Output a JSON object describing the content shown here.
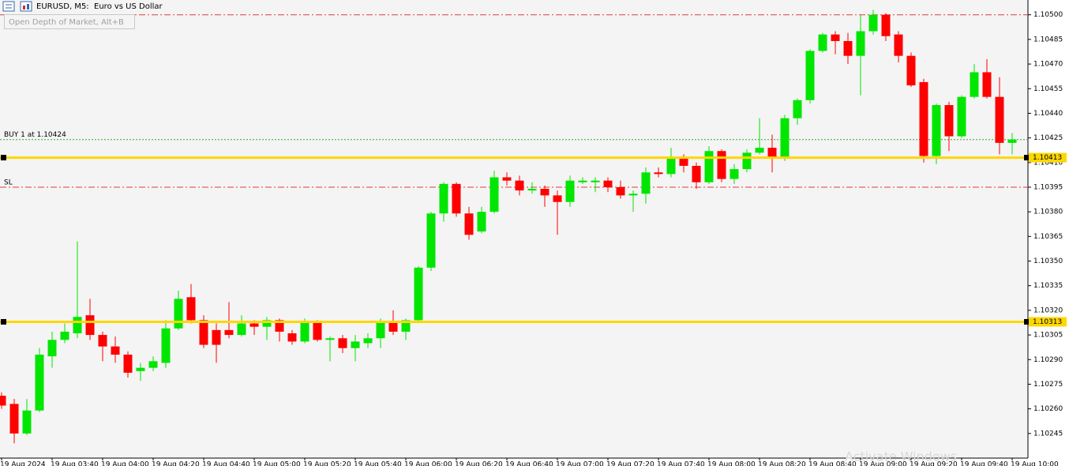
{
  "chart_data": {
    "type": "candlestick",
    "title": "EURUSD, M5:  Euro vs US Dollar",
    "tooltip": "Open Depth of Market, Alt+B",
    "watermark": "Activate Windows",
    "up_color": "#00e600",
    "down_color": "#ff0000",
    "categories": [
      "19 Aug 2024",
      null,
      null,
      null,
      "19 Aug 03:40",
      null,
      null,
      null,
      "19 Aug 04:00",
      null,
      null,
      null,
      "19 Aug 04:20",
      null,
      null,
      null,
      "19 Aug 04:40",
      null,
      null,
      null,
      "19 Aug 05:00",
      null,
      null,
      null,
      "19 Aug 05:20",
      null,
      null,
      null,
      "19 Aug 05:40",
      null,
      null,
      null,
      "19 Aug 06:00",
      null,
      null,
      null,
      "19 Aug 06:20",
      null,
      null,
      null,
      "19 Aug 06:40",
      null,
      null,
      null,
      "19 Aug 07:00",
      null,
      null,
      null,
      "19 Aug 07:20",
      null,
      null,
      null,
      "19 Aug 07:40",
      null,
      null,
      null,
      "19 Aug 08:00",
      null,
      null,
      null,
      "19 Aug 08:20",
      null,
      null,
      null,
      "19 Aug 08:40",
      null,
      null,
      null,
      "19 Aug 09:00",
      null,
      null,
      null,
      "19 Aug 09:20",
      null,
      null,
      null,
      "19 Aug 09:40",
      null,
      null,
      null,
      "19 Aug 10:00"
    ],
    "open": [
      1.10268,
      1.10263,
      1.10245,
      1.10259,
      1.10292,
      1.10302,
      1.10306,
      1.10317,
      1.10305,
      1.10298,
      1.10293,
      1.10283,
      1.10285,
      1.10288,
      1.10309,
      1.10328,
      1.10314,
      1.10308,
      1.10308,
      1.10305,
      1.10312,
      1.1031,
      1.10314,
      1.10306,
      1.10301,
      1.10313,
      1.10302,
      1.10303,
      1.10297,
      1.103,
      1.10303,
      1.10313,
      1.10307,
      1.10314,
      1.10346,
      1.10379,
      1.10397,
      1.10379,
      1.10368,
      1.1038,
      1.10401,
      1.10399,
      1.10393,
      1.10394,
      1.1039,
      1.10386,
      1.10398,
      1.10398,
      1.10399,
      1.10395,
      1.1039,
      1.10391,
      1.10404,
      1.10403,
      1.10413,
      1.10408,
      1.10398,
      1.10417,
      1.104,
      1.10406,
      1.10416,
      1.10419,
      1.10413,
      1.10437,
      1.10448,
      1.10478,
      1.10488,
      1.10484,
      1.10475,
      1.1049,
      1.105,
      1.10488,
      1.10475,
      1.10459,
      1.10414,
      1.10445,
      1.10426,
      1.1045,
      1.10465,
      1.1045,
      1.10422
    ],
    "high": [
      1.1027,
      1.10266,
      1.10266,
      1.10297,
      1.10307,
      1.10312,
      1.10362,
      1.10327,
      1.10307,
      1.10304,
      1.10295,
      1.10288,
      1.10292,
      1.10314,
      1.10332,
      1.10336,
      1.10317,
      1.10312,
      1.10325,
      1.10317,
      1.10314,
      1.10316,
      1.10315,
      1.10308,
      1.10315,
      1.10314,
      1.10304,
      1.10305,
      1.10305,
      1.10306,
      1.10315,
      1.1032,
      1.10315,
      1.10347,
      1.1038,
      1.10398,
      1.10398,
      1.10383,
      1.10383,
      1.10405,
      1.10404,
      1.10402,
      1.10398,
      1.10396,
      1.10393,
      1.10402,
      1.10401,
      1.10401,
      1.10401,
      1.10399,
      1.10393,
      1.10407,
      1.10407,
      1.10419,
      1.10415,
      1.1041,
      1.1042,
      1.10418,
      1.10409,
      1.10418,
      1.10437,
      1.10427,
      1.10439,
      1.10449,
      1.10479,
      1.10489,
      1.1049,
      1.10489,
      1.105,
      1.10503,
      1.10501,
      1.1049,
      1.10477,
      1.10461,
      1.10446,
      1.10447,
      1.10451,
      1.1047,
      1.10473,
      1.10462,
      1.10428
    ],
    "low": [
      1.1026,
      1.10239,
      1.10244,
      1.10258,
      1.10285,
      1.103,
      1.10303,
      1.10302,
      1.10289,
      1.10288,
      1.10279,
      1.10277,
      1.10283,
      1.10285,
      1.10308,
      1.10312,
      1.10297,
      1.10288,
      1.10303,
      1.10304,
      1.10305,
      1.10302,
      1.10301,
      1.10299,
      1.103,
      1.10301,
      1.10289,
      1.10294,
      1.10289,
      1.10297,
      1.10297,
      1.10305,
      1.10302,
      1.10313,
      1.10344,
      1.10374,
      1.10377,
      1.10363,
      1.10367,
      1.10379,
      1.10396,
      1.1039,
      1.10391,
      1.10383,
      1.10366,
      1.10383,
      1.10397,
      1.10392,
      1.10392,
      1.10388,
      1.1038,
      1.10385,
      1.10401,
      1.10401,
      1.10404,
      1.10394,
      1.10397,
      1.10398,
      1.10397,
      1.10404,
      1.10415,
      1.10404,
      1.10411,
      1.10433,
      1.10446,
      1.10477,
      1.10476,
      1.1047,
      1.10451,
      1.10488,
      1.10484,
      1.10471,
      1.10456,
      1.1041,
      1.10409,
      1.10417,
      1.10425,
      1.10449,
      1.10449,
      1.10415,
      1.10415
    ],
    "close": [
      1.10262,
      1.10245,
      1.10259,
      1.10293,
      1.10302,
      1.10307,
      1.10316,
      1.10305,
      1.10298,
      1.10293,
      1.10282,
      1.10285,
      1.10289,
      1.10309,
      1.10327,
      1.10314,
      1.10299,
      1.10299,
      1.10305,
      1.10312,
      1.1031,
      1.10314,
      1.10307,
      1.10301,
      1.10313,
      1.10302,
      1.10303,
      1.10297,
      1.10301,
      1.10303,
      1.10313,
      1.10307,
      1.10314,
      1.10346,
      1.10379,
      1.10397,
      1.10379,
      1.10366,
      1.1038,
      1.10401,
      1.10399,
      1.10393,
      1.10394,
      1.1039,
      1.10386,
      1.10399,
      1.10399,
      1.10399,
      1.10395,
      1.1039,
      1.10391,
      1.10404,
      1.10403,
      1.10413,
      1.10408,
      1.10398,
      1.10417,
      1.104,
      1.10406,
      1.10416,
      1.10419,
      1.10413,
      1.10437,
      1.10448,
      1.10478,
      1.10488,
      1.10484,
      1.10475,
      1.1049,
      1.105,
      1.10487,
      1.10475,
      1.10457,
      1.10414,
      1.10445,
      1.10426,
      1.1045,
      1.10465,
      1.1045,
      1.10422,
      1.10424
    ],
    "ylim": [
      1.1023,
      1.10509
    ],
    "yticks": [
      1.10245,
      {
        "value": 1.1026,
        "label": "1.10260"
      },
      1.10275,
      {
        "value": 1.1029,
        "label": "1.10290"
      },
      1.10305,
      {
        "value": 1.1032,
        "label": "1.10320"
      },
      1.10335,
      {
        "value": 1.1035,
        "label": "1.10350"
      },
      1.10365,
      {
        "value": 1.1038,
        "label": "1.10380"
      },
      1.10395,
      {
        "value": 1.1041,
        "label": "1.10410"
      },
      1.10425,
      {
        "value": 1.1044,
        "label": "1.10440"
      },
      1.10455,
      {
        "value": 1.1047,
        "label": "1.10470"
      },
      1.10485,
      {
        "value": 1.105,
        "label": "1.10500"
      }
    ],
    "horizontal_lines": [
      {
        "value": 1.10413,
        "color": "#ffd700"
      },
      {
        "value": 1.10313,
        "color": "#ffd700"
      }
    ],
    "order_lines": [
      {
        "label": "BUY 1 at 1.10424",
        "value": 1.10424,
        "color": "#2eaa2e",
        "style": "dotted"
      },
      {
        "label": "SL",
        "value": 1.10395,
        "color": "#e03c3c",
        "style": "dashdot"
      },
      {
        "value": 1.105,
        "color": "#e03c3c",
        "style": "dashdot"
      }
    ]
  }
}
